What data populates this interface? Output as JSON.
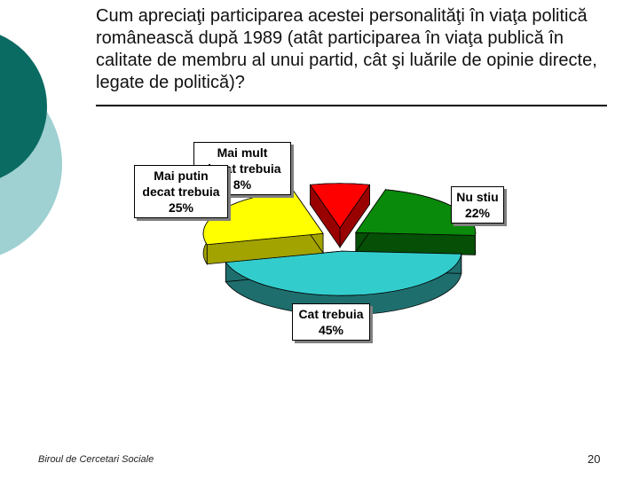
{
  "title": "Cum apreciaţi participarea acestei personalităţi în viaţa politică românească după 1989 (atât participarea în viaţa publică în calitate de membru al unui partid, cât şi luările de opinie directe, legate de politică)?",
  "chart_data": {
    "type": "pie",
    "title": "",
    "slices": [
      {
        "label": "Mai mult decat trebuia",
        "value": 8,
        "display": "8%",
        "color": "#ff0000",
        "shade": "#990000"
      },
      {
        "label": "Nu stiu",
        "value": 22,
        "display": "22%",
        "color": "#0a8a0a",
        "shade": "#064f06"
      },
      {
        "label": "Cat trebuia",
        "value": 45,
        "display": "45%",
        "color": "#33cccc",
        "shade": "#1f6e6e"
      },
      {
        "label": "Mai putin decat trebuia",
        "value": 25,
        "display": "25%",
        "color": "#ffff00",
        "shade": "#a3a300"
      }
    ]
  },
  "labels": {
    "mai_mult": {
      "line1": "Mai mult",
      "line2": "decat trebuia",
      "pct": "8%"
    },
    "nu_stiu": {
      "line1": "Nu stiu",
      "pct": "22%"
    },
    "cat": {
      "line1": "Cat trebuia",
      "pct": "45%"
    },
    "mai_putin": {
      "line1": "Mai putin",
      "line2": "decat trebuia",
      "pct": "25%"
    }
  },
  "footer": "Biroul de Cercetari Sociale",
  "page_number": "20",
  "colors": {
    "deco_dark": "#0a6b63",
    "deco_light": "#9fd0d2"
  }
}
